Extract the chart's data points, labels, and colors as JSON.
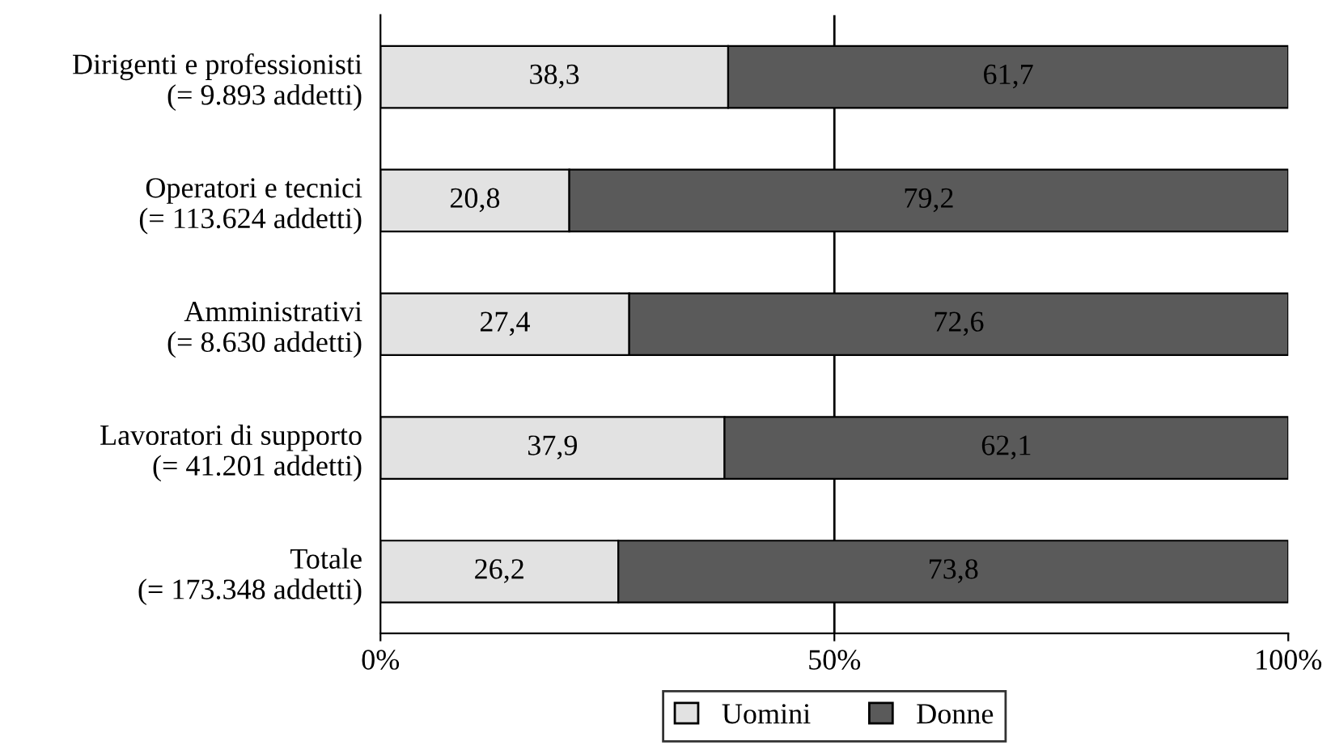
{
  "chart_data": {
    "type": "bar",
    "orientation": "horizontal",
    "stacked": true,
    "categories": [
      "Dirigenti e professionisti\n(= 9.893 addetti)",
      "Operatori e tecnici\n(= 113.624 addetti)",
      "Amministrativi\n(= 8.630 addetti)",
      "Lavoratori di supporto\n(= 41.201 addetti)",
      "Totale\n(= 173.348 addetti)"
    ],
    "series": [
      {
        "name": "Uomini",
        "color": "#e2e2e2",
        "values": [
          38.3,
          20.8,
          27.4,
          37.9,
          26.2
        ],
        "value_labels": [
          "38,3",
          "20,8",
          "27,4",
          "37,9",
          "26,2"
        ]
      },
      {
        "name": "Donne",
        "color": "#5a5a5a",
        "values": [
          61.7,
          79.2,
          72.6,
          62.1,
          73.8
        ],
        "value_labels": [
          "61,7",
          "79,2",
          "72,6",
          "62,1",
          "73,8"
        ]
      }
    ],
    "xlim": [
      0,
      100
    ],
    "xticks": [
      {
        "value": 0,
        "label": "0%"
      },
      {
        "value": 50,
        "label": "50%"
      },
      {
        "value": 100,
        "label": "100%"
      }
    ],
    "ref_lines": [
      {
        "axis": "x",
        "value": 50,
        "label": null,
        "color": "#000000"
      }
    ],
    "legend": "bottom",
    "grid": false
  }
}
